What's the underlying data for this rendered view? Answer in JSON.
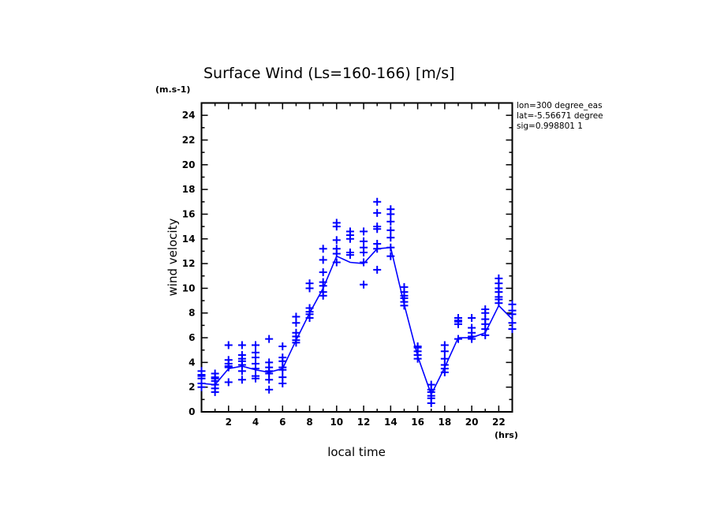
{
  "chart_data": {
    "type": "scatter",
    "title": "Surface Wind  (Ls=160-166) [m/s]",
    "xlabel": "local time",
    "ylabel": "wind velocity",
    "x_unit": "(hrs)",
    "y_unit": "(m.s-1)",
    "xlim": [
      0,
      23
    ],
    "ylim": [
      0,
      25
    ],
    "x_ticks": [
      "2",
      "4",
      "6",
      "8",
      "10",
      "12",
      "14",
      "16",
      "18",
      "20",
      "22"
    ],
    "y_ticks": [
      "0",
      "2",
      "4",
      "6",
      "8",
      "10",
      "12",
      "14",
      "16",
      "18",
      "20",
      "22",
      "24"
    ],
    "info_lines": [
      "lon=300 degree_eas",
      "lat=-5.56671 degree",
      "sig=0.998801 1"
    ],
    "color": "#0000ff",
    "series": [
      {
        "name": "mean",
        "kind": "line",
        "x": [
          0,
          1,
          2,
          3,
          4,
          5,
          6,
          7,
          8,
          9,
          10,
          11,
          12,
          13,
          14,
          15,
          16,
          17,
          18,
          19,
          20,
          21,
          22,
          23
        ],
        "values": [
          2.3,
          2.2,
          3.5,
          3.7,
          3.4,
          3.2,
          3.5,
          5.8,
          8.0,
          10.0,
          12.6,
          12.1,
          12.0,
          13.2,
          13.3,
          8.7,
          4.5,
          1.4,
          3.6,
          6.0,
          6.0,
          6.4,
          8.6,
          7.5
        ]
      },
      {
        "name": "samples",
        "kind": "markers",
        "points": [
          [
            0,
            [
              2.0,
              2.3,
              2.7,
              2.9,
              3.0,
              3.3
            ]
          ],
          [
            1,
            [
              1.6,
              1.9,
              2.2,
              2.5,
              2.7,
              2.8,
              3.1
            ]
          ],
          [
            2,
            [
              2.4,
              3.6,
              3.7,
              3.9,
              4.2,
              5.4
            ]
          ],
          [
            3,
            [
              2.6,
              3.3,
              3.8,
              4.1,
              4.3,
              4.6,
              5.4
            ]
          ],
          [
            4,
            [
              2.7,
              2.9,
              3.5,
              3.9,
              4.4,
              4.8,
              5.4
            ]
          ],
          [
            5,
            [
              1.8,
              2.6,
              3.1,
              3.3,
              3.6,
              4.0,
              5.9
            ]
          ],
          [
            6,
            [
              2.3,
              2.8,
              3.4,
              3.6,
              4.1,
              4.4,
              5.3
            ]
          ],
          [
            7,
            [
              5.6,
              5.8,
              6.1,
              6.4,
              7.2,
              7.7
            ]
          ],
          [
            8,
            [
              7.6,
              7.9,
              8.1,
              8.4,
              10.0,
              10.4
            ]
          ],
          [
            9,
            [
              9.4,
              9.7,
              10.2,
              10.5,
              11.3,
              12.3,
              13.2
            ]
          ],
          [
            10,
            [
              12.1,
              12.8,
              13.2,
              13.9,
              15.0,
              15.3
            ]
          ],
          [
            11,
            [
              12.7,
              12.9,
              14.0,
              14.3,
              14.6
            ]
          ],
          [
            12,
            [
              10.3,
              12.1,
              12.9,
              13.3,
              13.8,
              14.6
            ]
          ],
          [
            13,
            [
              11.5,
              13.2,
              13.6,
              14.8,
              15.0,
              16.1,
              17.0
            ]
          ],
          [
            14,
            [
              12.6,
              13.3,
              14.1,
              14.7,
              15.4,
              16.0,
              16.4
            ]
          ],
          [
            15,
            [
              8.6,
              8.9,
              9.2,
              9.4,
              9.7,
              10.1
            ]
          ],
          [
            16,
            [
              4.3,
              4.6,
              4.9,
              5.2,
              5.3
            ]
          ],
          [
            17,
            [
              0.7,
              1.1,
              1.3,
              1.6,
              1.8,
              2.2
            ]
          ],
          [
            18,
            [
              3.2,
              3.5,
              3.8,
              4.3,
              4.9,
              5.4
            ]
          ],
          [
            19,
            [
              5.9,
              7.1,
              7.3,
              7.4,
              7.6
            ]
          ],
          [
            20,
            [
              5.9,
              6.1,
              6.4,
              6.8,
              7.6
            ]
          ],
          [
            21,
            [
              6.2,
              6.7,
              7.1,
              7.5,
              8.0,
              8.3
            ]
          ],
          [
            22,
            [
              8.8,
              9.1,
              9.3,
              9.7,
              10.0,
              10.4,
              10.8
            ]
          ],
          [
            23,
            [
              6.7,
              7.2,
              7.9,
              8.2,
              8.7
            ]
          ]
        ]
      }
    ]
  }
}
